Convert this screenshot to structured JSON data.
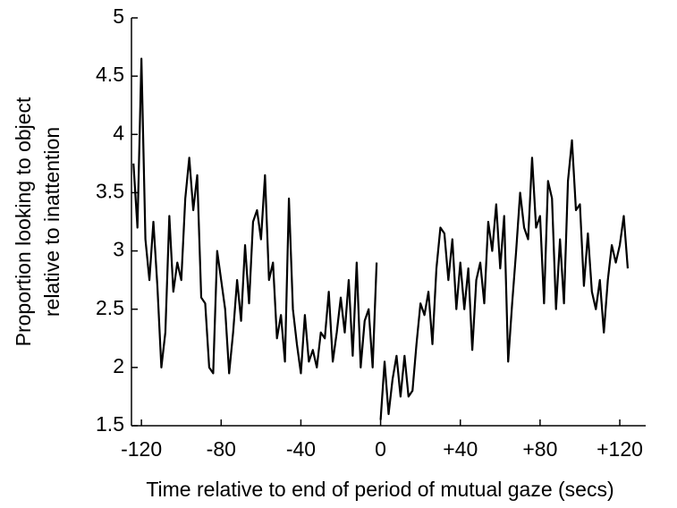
{
  "chart_data": {
    "type": "line",
    "x_label": "Time relative to end of period of mutual gaze (secs)",
    "y_label": [
      "Proportion looking to object",
      "relative to inattention"
    ],
    "color": "#000000",
    "x": [
      -124,
      -122,
      -120,
      -118,
      -116,
      -114,
      -112,
      -110,
      -108,
      -106,
      -104,
      -102,
      -100,
      -98,
      -96,
      -94,
      -92,
      -90,
      -88,
      -86,
      -84,
      -82,
      -80,
      -78,
      -76,
      -74,
      -72,
      -70,
      -68,
      -66,
      -64,
      -62,
      -60,
      -58,
      -56,
      -54,
      -52,
      -50,
      -48,
      -46,
      -44,
      -42,
      -40,
      -38,
      -36,
      -34,
      -32,
      -30,
      -28,
      -26,
      -24,
      -22,
      -20,
      -18,
      -16,
      -14,
      -12,
      -10,
      -8,
      -6,
      -4,
      -2,
      -1,
      0,
      2,
      4,
      6,
      8,
      10,
      12,
      14,
      16,
      18,
      20,
      22,
      24,
      26,
      28,
      30,
      32,
      34,
      36,
      38,
      40,
      42,
      44,
      46,
      48,
      50,
      52,
      54,
      56,
      58,
      60,
      62,
      64,
      66,
      68,
      70,
      72,
      74,
      76,
      78,
      80,
      82,
      84,
      86,
      88,
      90,
      92,
      94,
      96,
      98,
      100,
      102,
      104,
      106,
      108,
      110,
      112,
      114,
      116,
      118,
      120,
      122,
      124
    ],
    "values": [
      3.75,
      3.2,
      4.65,
      3.1,
      2.75,
      3.25,
      2.7,
      2.0,
      2.3,
      3.3,
      2.65,
      2.9,
      2.75,
      3.45,
      3.8,
      3.35,
      3.65,
      2.6,
      2.55,
      2.0,
      1.95,
      3.0,
      2.75,
      2.5,
      1.95,
      2.3,
      2.75,
      2.4,
      3.05,
      2.55,
      3.25,
      3.35,
      3.1,
      3.65,
      2.75,
      2.9,
      2.25,
      2.45,
      2.05,
      3.45,
      2.5,
      2.2,
      1.95,
      2.45,
      2.05,
      2.15,
      2.0,
      2.3,
      2.25,
      2.65,
      2.05,
      2.3,
      2.6,
      2.3,
      2.75,
      2.1,
      2.9,
      2.0,
      2.4,
      2.5,
      2.0,
      2.9,
      null,
      1.55,
      2.05,
      1.6,
      1.9,
      2.1,
      1.75,
      2.1,
      1.75,
      1.8,
      2.2,
      2.55,
      2.45,
      2.65,
      2.2,
      2.85,
      3.2,
      3.15,
      2.75,
      3.1,
      2.5,
      2.9,
      2.5,
      2.85,
      2.15,
      2.75,
      2.9,
      2.55,
      3.25,
      3.0,
      3.4,
      2.85,
      3.3,
      2.05,
      2.55,
      3.0,
      3.5,
      3.2,
      3.1,
      3.8,
      3.2,
      3.3,
      2.55,
      3.6,
      3.45,
      2.5,
      3.1,
      2.55,
      3.6,
      3.95,
      3.35,
      3.4,
      2.7,
      3.15,
      2.65,
      2.5,
      2.75,
      2.3,
      2.75,
      3.05,
      2.9,
      3.05,
      3.3,
      2.85
    ],
    "xlim": [
      -125,
      133
    ],
    "ylim": [
      1.5,
      5
    ],
    "xticks": [
      -120,
      -80,
      -40,
      0,
      {
        "value": 40,
        "label": "+40"
      },
      {
        "value": 80,
        "label": "+80"
      },
      {
        "value": 120,
        "label": "+120"
      }
    ],
    "yticks": [
      1.5,
      2,
      2.5,
      3,
      3.5,
      4,
      4.5,
      5
    ]
  }
}
